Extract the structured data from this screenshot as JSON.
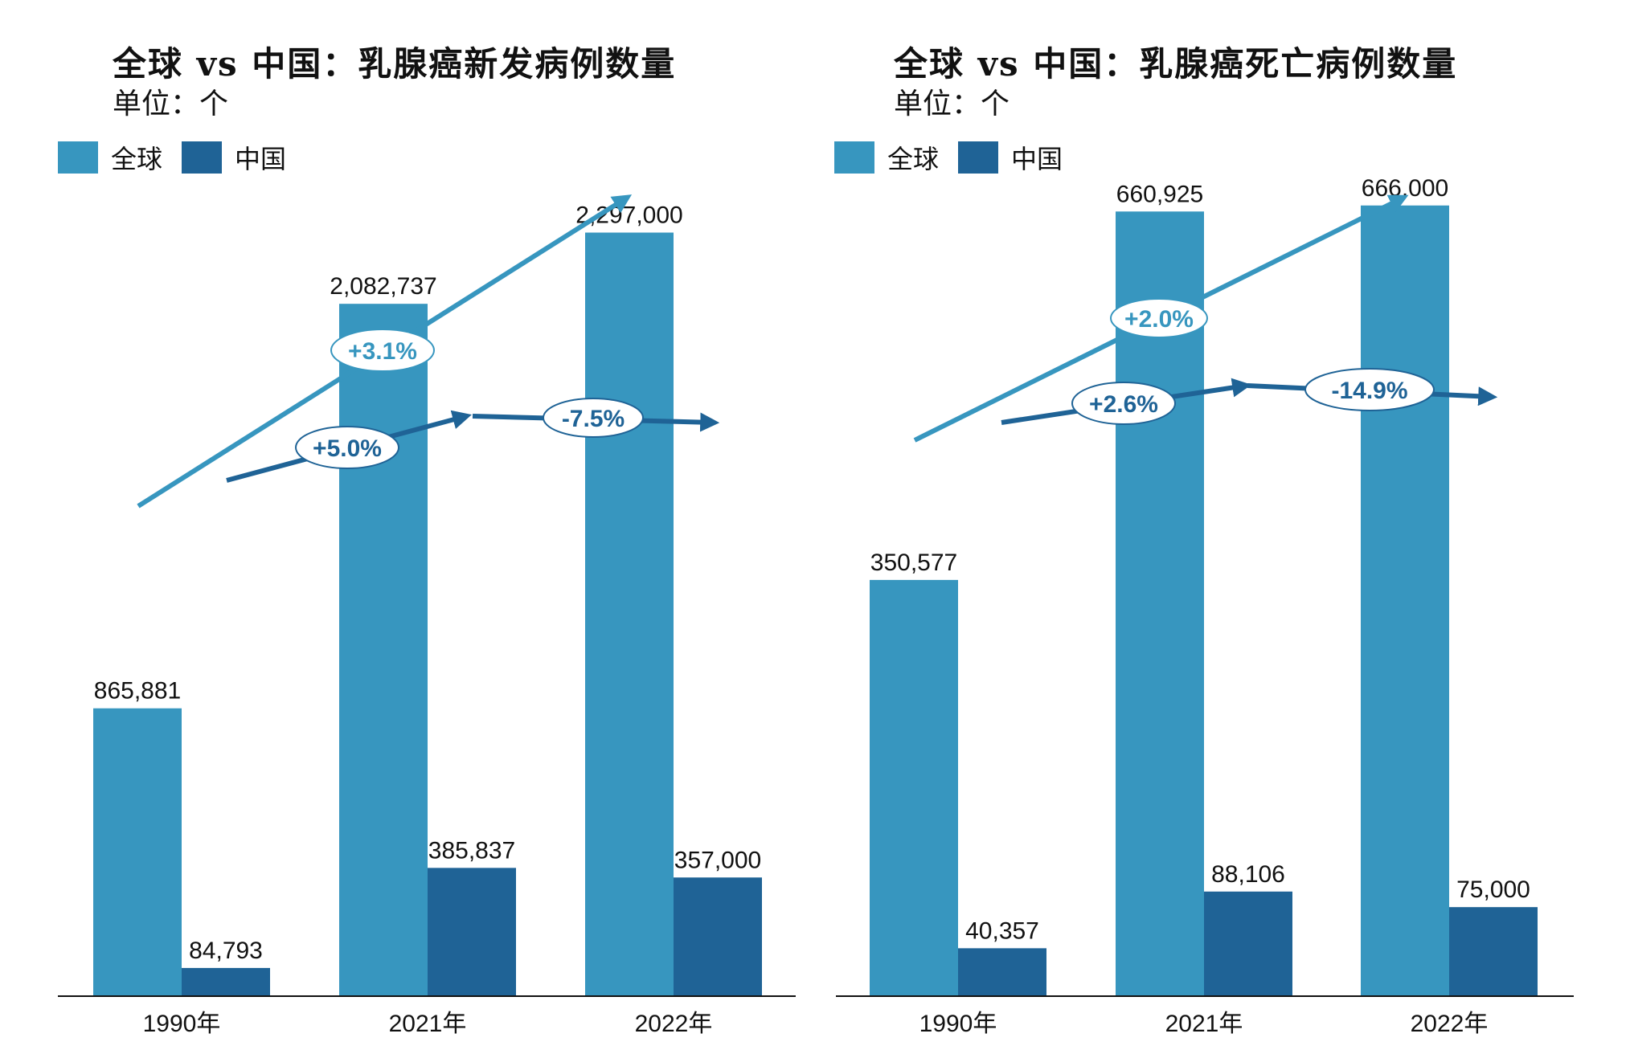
{
  "colors": {
    "global": "#3796bf",
    "china": "#1f6396",
    "axis": "#111111"
  },
  "chart_data": [
    {
      "type": "bar",
      "title": "全球 vs 中国：乳腺癌新发病例数量",
      "unit": "单位：个",
      "categories": [
        "1990年",
        "2021年",
        "2022年"
      ],
      "series": [
        {
          "name": "全球",
          "values": [
            865881,
            2082737,
            2297000
          ],
          "labels": [
            "865,881",
            "2,082,737",
            "2,297,000"
          ]
        },
        {
          "name": "中国",
          "values": [
            84793,
            385837,
            357000
          ],
          "labels": [
            "84,793",
            "385,837",
            "357,000"
          ]
        }
      ],
      "ylim": [
        0,
        2900000
      ],
      "legend": "top-left",
      "annotations": [
        {
          "series": "全球",
          "span": "1990年-2022年",
          "text": "+3.1%"
        },
        {
          "series": "中国",
          "span": "1990年-2021年",
          "text": "+5.0%"
        },
        {
          "series": "中国",
          "span": "2021年-2022年",
          "text": "-7.5%"
        }
      ]
    },
    {
      "type": "bar",
      "title": "全球 vs 中国：乳腺癌死亡病例数量",
      "unit": "单位：个",
      "categories": [
        "1990年",
        "2021年",
        "2022年"
      ],
      "series": [
        {
          "name": "全球",
          "values": [
            350577,
            660925,
            666000
          ],
          "labels": [
            "350,577",
            "660,925",
            "666,000"
          ]
        },
        {
          "name": "中国",
          "values": [
            40357,
            88106,
            75000
          ],
          "labels": [
            "40,357",
            "88,106",
            "75,000"
          ]
        }
      ],
      "ylim": [
        0,
        812000
      ],
      "legend": "top-left",
      "annotations": [
        {
          "series": "全球",
          "span": "1990年-2022年",
          "text": "+2.0%"
        },
        {
          "series": "中国",
          "span": "1990年-2021年",
          "text": "+2.6%"
        },
        {
          "series": "中国",
          "span": "2021年-2022年",
          "text": "-14.9%"
        }
      ]
    }
  ]
}
